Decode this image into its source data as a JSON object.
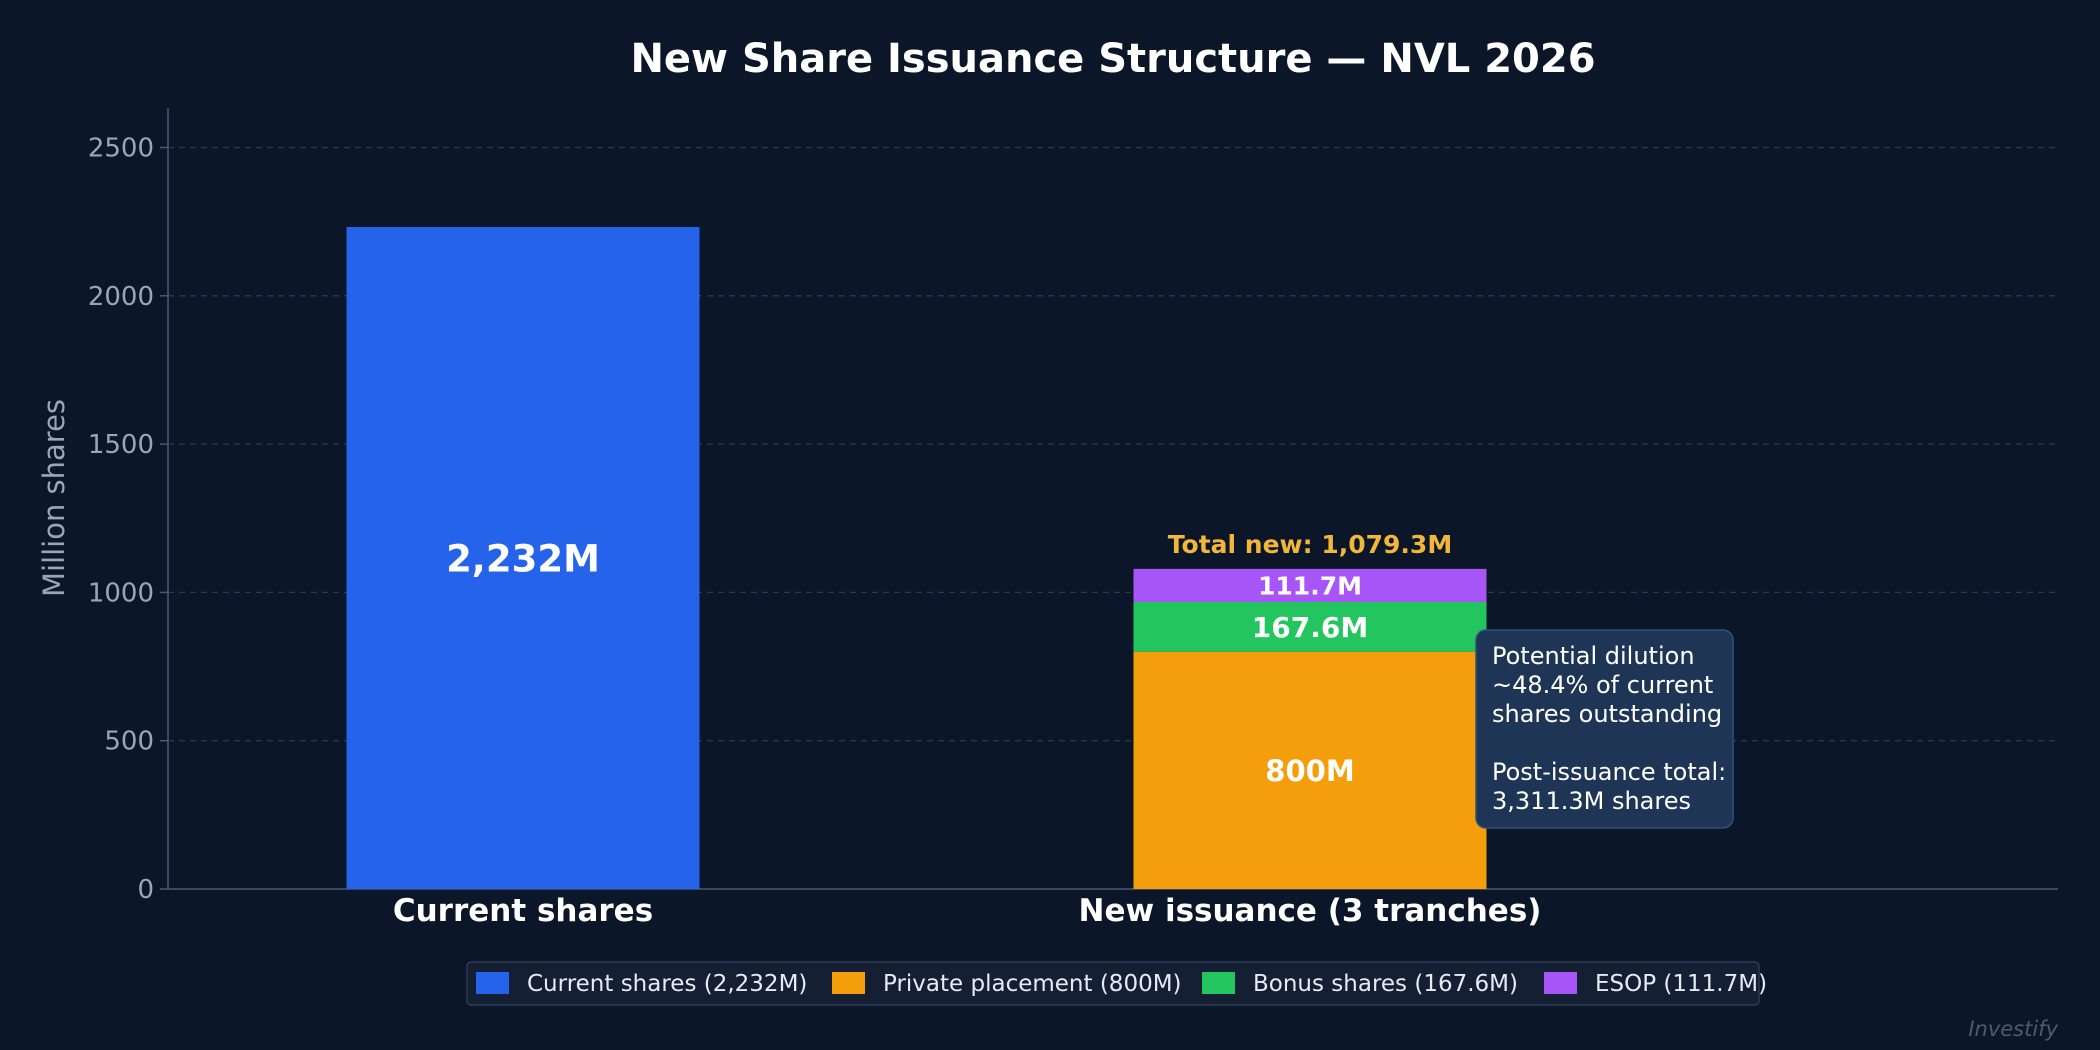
{
  "watermark": "Investify",
  "chart_data": {
    "type": "bar",
    "stacked": true,
    "title": "New Share Issuance Structure — NVL 2026",
    "xlabel": "",
    "ylabel": "Million shares",
    "ylim": [
      0,
      2650
    ],
    "yticks": [
      0,
      500,
      1000,
      1500,
      2000,
      2500
    ],
    "grid": true,
    "legend_position": "bottom-center",
    "categories": [
      "Current shares",
      "New issuance (3 tranches)"
    ],
    "series": [
      {
        "name": "Current shares (2,232M)",
        "color": "#2563eb",
        "values": [
          2232,
          0
        ],
        "labels": [
          "2,232M",
          ""
        ]
      },
      {
        "name": "Private placement (800M)",
        "color": "#f59e0b",
        "values": [
          0,
          800
        ],
        "labels": [
          "",
          "800M"
        ]
      },
      {
        "name": "Bonus shares (167.6M)",
        "color": "#22c55e",
        "values": [
          0,
          167.6
        ],
        "labels": [
          "",
          "167.6M"
        ]
      },
      {
        "name": "ESOP (111.7M)",
        "color": "#a855f7",
        "values": [
          0,
          111.7
        ],
        "labels": [
          "",
          "111.7M"
        ]
      }
    ],
    "annotations": {
      "total_label": "Total new: 1,079.3M",
      "note_lines": [
        "Potential dilution",
        "~48.4% of current",
        "shares outstanding",
        "",
        "Post-issuance total:",
        "3,311.3M shares"
      ]
    }
  }
}
